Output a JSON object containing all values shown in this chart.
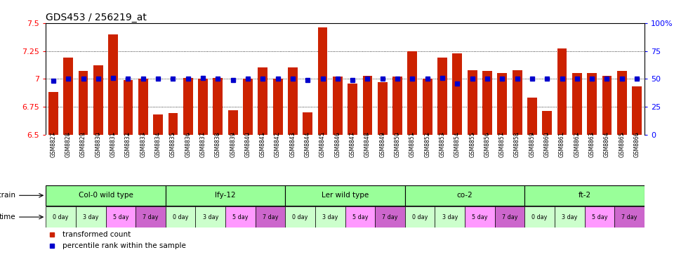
{
  "title": "GDS453 / 256219_at",
  "gsm_labels": [
    "GSM8827",
    "GSM8828",
    "GSM8829",
    "GSM8830",
    "GSM8831",
    "GSM8832",
    "GSM8833",
    "GSM8834",
    "GSM8835",
    "GSM8836",
    "GSM8837",
    "GSM8838",
    "GSM8839",
    "GSM8840",
    "GSM8841",
    "GSM8842",
    "GSM8843",
    "GSM8844",
    "GSM8845",
    "GSM8846",
    "GSM8847",
    "GSM8848",
    "GSM8849",
    "GSM8850",
    "GSM8851",
    "GSM8852",
    "GSM8853",
    "GSM8854",
    "GSM8855",
    "GSM8856",
    "GSM8857",
    "GSM8858",
    "GSM8859",
    "GSM8860",
    "GSM8861",
    "GSM8862",
    "GSM8863",
    "GSM8864",
    "GSM8865",
    "GSM8866"
  ],
  "bar_values": [
    6.88,
    7.19,
    7.07,
    7.12,
    7.4,
    6.99,
    7.0,
    6.68,
    6.69,
    7.01,
    7.0,
    7.01,
    6.72,
    7.0,
    7.1,
    7.0,
    7.1,
    6.7,
    7.46,
    7.02,
    6.96,
    7.03,
    6.97,
    7.02,
    7.25,
    7.0,
    7.19,
    7.23,
    7.08,
    7.07,
    7.05,
    7.08,
    6.83,
    6.71,
    7.27,
    7.05,
    7.05,
    7.03,
    7.07,
    6.93
  ],
  "percentile_values": [
    0.48,
    0.5,
    0.5,
    0.5,
    0.51,
    0.5,
    0.5,
    0.5,
    0.5,
    0.5,
    0.51,
    0.5,
    0.49,
    0.5,
    0.5,
    0.5,
    0.5,
    0.49,
    0.5,
    0.5,
    0.49,
    0.5,
    0.5,
    0.5,
    0.5,
    0.5,
    0.51,
    0.46,
    0.5,
    0.5,
    0.5,
    0.5,
    0.5,
    0.5,
    0.5,
    0.5,
    0.5,
    0.5,
    0.5,
    0.5
  ],
  "ylim": [
    6.5,
    7.5
  ],
  "yticks": [
    6.5,
    6.75,
    7.0,
    7.25,
    7.5
  ],
  "ytick_labels": [
    "6.5",
    "6.75",
    "7",
    "7.25",
    "7.5"
  ],
  "y2ticks": [
    0.0,
    0.25,
    0.5,
    0.75,
    1.0
  ],
  "y2tick_labels": [
    "0",
    "25",
    "50",
    "75",
    "100%"
  ],
  "bar_color": "#cc2200",
  "percentile_color": "#0000cc",
  "background_color": "#ffffff",
  "strains": [
    {
      "label": "Col-0 wild type",
      "start": 0,
      "end": 8
    },
    {
      "label": "lfy-12",
      "start": 8,
      "end": 16
    },
    {
      "label": "Ler wild type",
      "start": 16,
      "end": 24
    },
    {
      "label": "co-2",
      "start": 24,
      "end": 32
    },
    {
      "label": "ft-2",
      "start": 32,
      "end": 40
    }
  ],
  "strain_color": "#99ff99",
  "time_labels": [
    "0 day",
    "3 day",
    "5 day",
    "7 day"
  ],
  "time_colors": [
    "#ccffcc",
    "#ccffcc",
    "#ff99ff",
    "#cc66cc"
  ],
  "legend_items": [
    {
      "label": "transformed count",
      "color": "#cc2200"
    },
    {
      "label": "percentile rank within the sample",
      "color": "#0000cc"
    }
  ]
}
